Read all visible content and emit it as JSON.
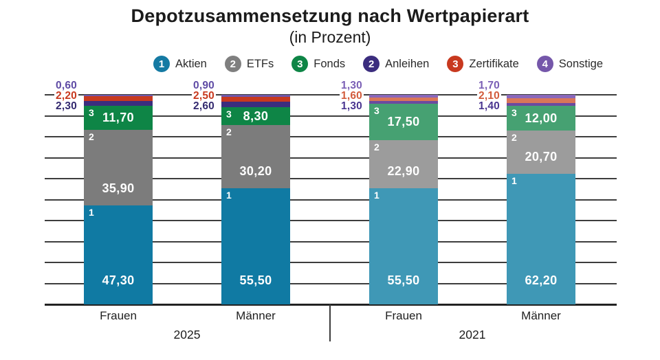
{
  "title": "Depotzusammensetzung nach Wertpapierart",
  "subtitle": "(in Prozent)",
  "chart_data": {
    "type": "bar",
    "stacked": true,
    "value_format": "decimal-comma",
    "ylim": [
      0,
      100
    ],
    "grid": {
      "horizontal": true,
      "step": 10
    },
    "legend_position": "top",
    "series_order": [
      "Aktien",
      "ETFs",
      "Fonds",
      "Anleihen",
      "Zertifikate",
      "Sonstige"
    ],
    "segment_numbers": {
      "Aktien": "1",
      "ETFs": "2",
      "Fonds": "3"
    },
    "legend": [
      {
        "number": "1",
        "label": "Aktien",
        "color": "#157AA3"
      },
      {
        "number": "2",
        "label": "ETFs",
        "color": "#7F7F7F"
      },
      {
        "number": "3",
        "label": "Fonds",
        "color": "#0E8546"
      },
      {
        "number": "2",
        "label": "Anleihen",
        "color": "#3B2D7E"
      },
      {
        "number": "3",
        "label": "Zertifikate",
        "color": "#C8391F"
      },
      {
        "number": "4",
        "label": "Sonstige",
        "color": "#7557AA"
      }
    ],
    "groups": [
      {
        "label": "2025",
        "colors": {
          "Aktien": "#107AA3",
          "ETFs": "#7C7C7C",
          "Fonds": "#0E8546",
          "Anleihen": "#3B2D7E",
          "Zertifikate": "#C8391F",
          "Sonstige": "#7058AB"
        },
        "callout_colors": {
          "Sonstige": "#5F4BA5",
          "Zertifikate": "#C8391F",
          "Anleihen": "#33296F"
        },
        "bars": [
          {
            "label": "Frauen",
            "values": {
              "Aktien": 47.3,
              "ETFs": 35.9,
              "Fonds": 11.7,
              "Anleihen": 2.3,
              "Zertifikate": 2.2,
              "Sonstige": 0.6
            },
            "display": {
              "Aktien": "47,30",
              "ETFs": "35,90",
              "Fonds": "11,70",
              "Anleihen": "2,30",
              "Zertifikate": "2,20",
              "Sonstige": "0,60"
            }
          },
          {
            "label": "Männer",
            "values": {
              "Aktien": 55.5,
              "ETFs": 30.2,
              "Fonds": 8.3,
              "Anleihen": 2.6,
              "Zertifikate": 2.5,
              "Sonstige": 0.9
            },
            "display": {
              "Aktien": "55,50",
              "ETFs": "30,20",
              "Fonds": "8,30",
              "Anleihen": "2,60",
              "Zertifikate": "2,50",
              "Sonstige": "0,90"
            }
          }
        ]
      },
      {
        "label": "2021",
        "colors": {
          "Aktien": "#3F98B6",
          "ETFs": "#9C9C9C",
          "Fonds": "#46A172",
          "Anleihen": "#6B4AA0",
          "Zertifikate": "#D97659",
          "Sonstige": "#8A68BB"
        },
        "callout_colors": {
          "Sonstige": "#7A5FB5",
          "Zertifikate": "#D25B3C",
          "Anleihen": "#4A3590"
        },
        "bars": [
          {
            "label": "Frauen",
            "values": {
              "Aktien": 55.5,
              "ETFs": 22.9,
              "Fonds": 17.5,
              "Anleihen": 1.3,
              "Zertifikate": 1.6,
              "Sonstige": 1.3
            },
            "display": {
              "Aktien": "55,50",
              "ETFs": "22,90",
              "Fonds": "17,50",
              "Anleihen": "1,30",
              "Zertifikate": "1,60",
              "Sonstige": "1,30"
            }
          },
          {
            "label": "Männer",
            "values": {
              "Aktien": 62.2,
              "ETFs": 20.7,
              "Fonds": 12.0,
              "Anleihen": 1.4,
              "Zertifikate": 2.1,
              "Sonstige": 1.7
            },
            "display": {
              "Aktien": "62,20",
              "ETFs": "20,70",
              "Fonds": "12,00",
              "Anleihen": "1,40",
              "Zertifikate": "2,10",
              "Sonstige": "1,70"
            }
          }
        ]
      }
    ]
  }
}
